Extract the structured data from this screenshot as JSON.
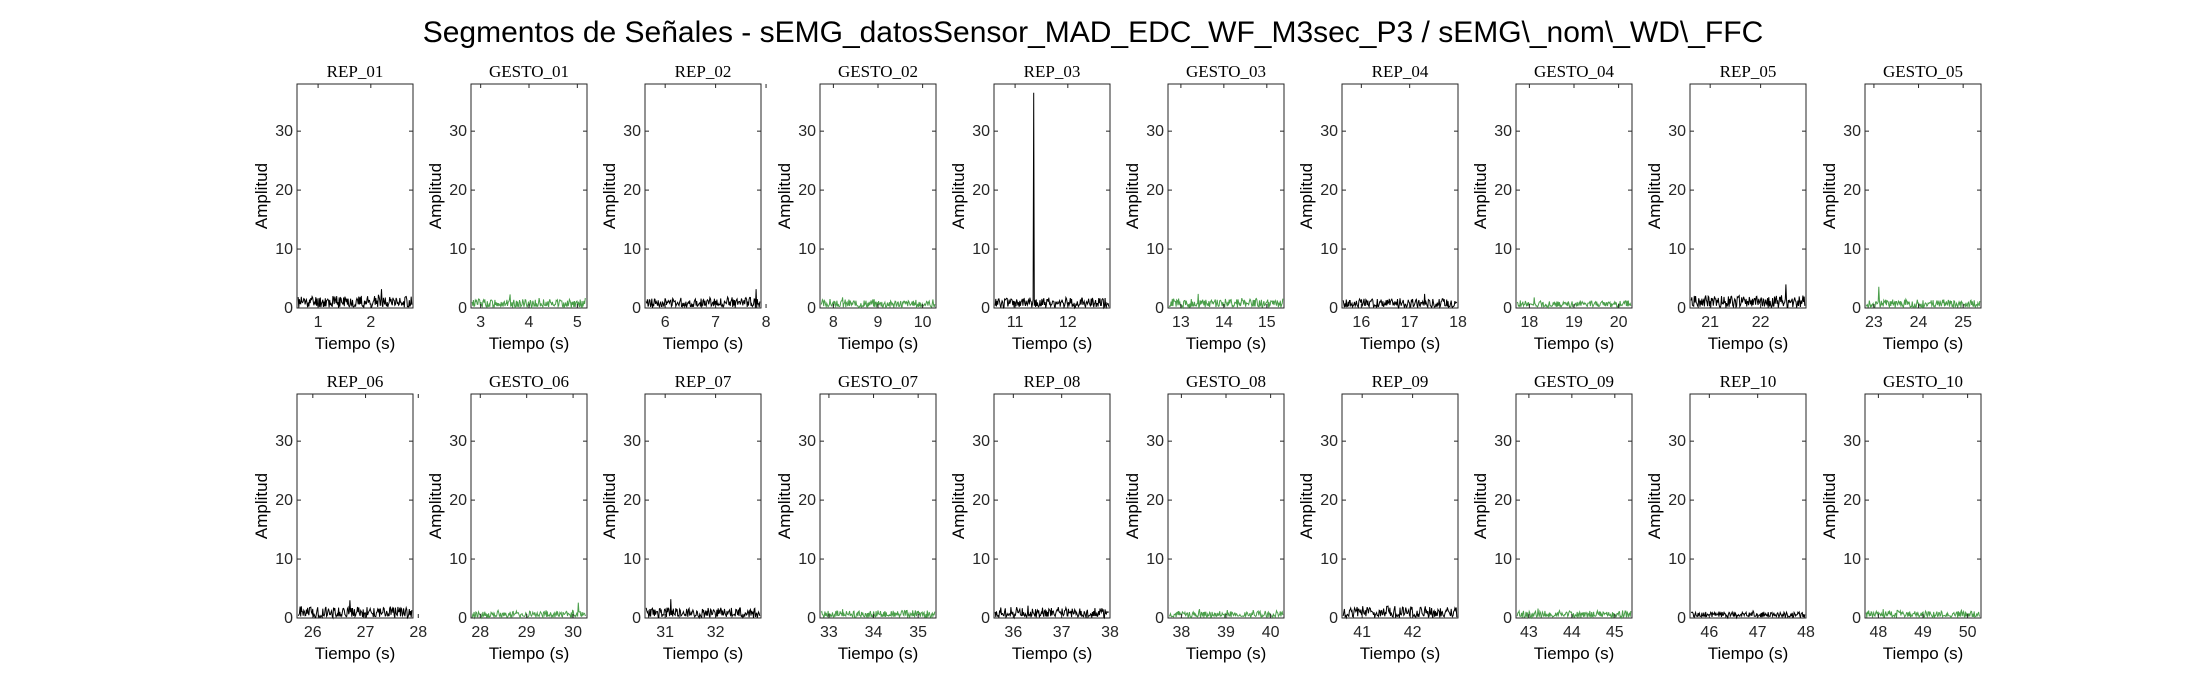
{
  "figure": {
    "title": "Segmentos de Señales - sEMG_datosSensor_MAD_EDC_WF_M3sec_P3 / sEMG\\_nom\\_WD\\_FFC"
  },
  "colors": {
    "rep": "#000000",
    "gesto": "#4a9e4a",
    "axes": "#262626"
  },
  "chart_data": [
    {
      "type": "line",
      "title": "REP_01",
      "xlabel": "Tiempo (s)",
      "ylabel": "Amplitud",
      "xlim": [
        0.6,
        2.8
      ],
      "ylim": [
        0,
        38
      ],
      "xticks": [
        1,
        2
      ],
      "yticks": [
        0,
        10,
        20,
        30
      ],
      "series": [
        {
          "color": "#000000",
          "level": 1.2,
          "peak_x": 2.2,
          "peak_y": 3.2,
          "seed": 11
        }
      ]
    },
    {
      "type": "line",
      "title": "GESTO_01",
      "xlabel": "Tiempo (s)",
      "ylabel": "Amplitud",
      "xlim": [
        2.8,
        5.2
      ],
      "ylim": [
        0,
        38
      ],
      "xticks": [
        3,
        4,
        5
      ],
      "yticks": [
        0,
        10,
        20,
        30
      ],
      "series": [
        {
          "color": "#4a9e4a",
          "level": 0.9,
          "peak_x": 3.6,
          "peak_y": 2.3,
          "seed": 12
        }
      ]
    },
    {
      "type": "line",
      "title": "REP_02",
      "xlabel": "Tiempo (s)",
      "ylabel": "Amplitud",
      "xlim": [
        5.6,
        7.9
      ],
      "ylim": [
        0,
        38
      ],
      "xticks": [
        6,
        7,
        8
      ],
      "yticks": [
        0,
        10,
        20,
        30
      ],
      "series": [
        {
          "color": "#000000",
          "level": 1.0,
          "peak_x": 7.8,
          "peak_y": 3.2,
          "seed": 13
        }
      ]
    },
    {
      "type": "line",
      "title": "GESTO_02",
      "xlabel": "Tiempo (s)",
      "ylabel": "Amplitud",
      "xlim": [
        7.7,
        10.3
      ],
      "ylim": [
        0,
        38
      ],
      "xticks": [
        8,
        9,
        10
      ],
      "yticks": [
        0,
        10,
        20,
        30
      ],
      "series": [
        {
          "color": "#4a9e4a",
          "level": 0.8,
          "peak_x": 8.2,
          "peak_y": 1.8,
          "seed": 14
        }
      ]
    },
    {
      "type": "line",
      "title": "REP_03",
      "xlabel": "Tiempo (s)",
      "ylabel": "Amplitud",
      "xlim": [
        10.6,
        12.8
      ],
      "ylim": [
        0,
        38
      ],
      "xticks": [
        11,
        12
      ],
      "yticks": [
        0,
        10,
        20,
        30
      ],
      "series": [
        {
          "color": "#000000",
          "level": 1.0,
          "peak_x": 11.35,
          "peak_y": 36.5,
          "seed": 15
        }
      ]
    },
    {
      "type": "line",
      "title": "GESTO_03",
      "xlabel": "Tiempo (s)",
      "ylabel": "Amplitud",
      "xlim": [
        12.7,
        15.4
      ],
      "ylim": [
        0,
        38
      ],
      "xticks": [
        13,
        14,
        15
      ],
      "yticks": [
        0,
        10,
        20,
        30
      ],
      "series": [
        {
          "color": "#4a9e4a",
          "level": 0.9,
          "peak_x": 13.4,
          "peak_y": 2.4,
          "seed": 16
        }
      ]
    },
    {
      "type": "line",
      "title": "REP_04",
      "xlabel": "Tiempo (s)",
      "ylabel": "Amplitud",
      "xlim": [
        15.6,
        18.0
      ],
      "ylim": [
        0,
        38
      ],
      "xticks": [
        16,
        17,
        18
      ],
      "yticks": [
        0,
        10,
        20,
        30
      ],
      "series": [
        {
          "color": "#000000",
          "level": 0.9,
          "peak_x": 17.3,
          "peak_y": 2.4,
          "seed": 17
        }
      ]
    },
    {
      "type": "line",
      "title": "GESTO_04",
      "xlabel": "Tiempo (s)",
      "ylabel": "Amplitud",
      "xlim": [
        17.7,
        20.3
      ],
      "ylim": [
        0,
        38
      ],
      "xticks": [
        18,
        19,
        20
      ],
      "yticks": [
        0,
        10,
        20,
        30
      ],
      "series": [
        {
          "color": "#4a9e4a",
          "level": 0.7,
          "peak_x": 18.1,
          "peak_y": 1.8,
          "seed": 18
        }
      ]
    },
    {
      "type": "line",
      "title": "REP_05",
      "xlabel": "Tiempo (s)",
      "ylabel": "Amplitud",
      "xlim": [
        20.6,
        22.9
      ],
      "ylim": [
        0,
        38
      ],
      "xticks": [
        21,
        22
      ],
      "yticks": [
        0,
        10,
        20,
        30
      ],
      "series": [
        {
          "color": "#000000",
          "level": 1.2,
          "peak_x": 22.5,
          "peak_y": 4.0,
          "seed": 19
        }
      ]
    },
    {
      "type": "line",
      "title": "GESTO_05",
      "xlabel": "Tiempo (s)",
      "ylabel": "Amplitud",
      "xlim": [
        22.8,
        25.4
      ],
      "ylim": [
        0,
        38
      ],
      "xticks": [
        23,
        24,
        25
      ],
      "yticks": [
        0,
        10,
        20,
        30
      ],
      "series": [
        {
          "color": "#4a9e4a",
          "level": 0.8,
          "peak_x": 23.1,
          "peak_y": 3.6,
          "seed": 20
        }
      ]
    },
    {
      "type": "line",
      "title": "REP_06",
      "xlabel": "Tiempo (s)",
      "ylabel": "Amplitud",
      "xlim": [
        25.7,
        27.9
      ],
      "ylim": [
        0,
        38
      ],
      "xticks": [
        26,
        27,
        28
      ],
      "yticks": [
        0,
        10,
        20,
        30
      ],
      "series": [
        {
          "color": "#000000",
          "level": 1.1,
          "peak_x": 26.7,
          "peak_y": 3.0,
          "seed": 21
        }
      ]
    },
    {
      "type": "line",
      "title": "GESTO_06",
      "xlabel": "Tiempo (s)",
      "ylabel": "Amplitud",
      "xlim": [
        27.8,
        30.3
      ],
      "ylim": [
        0,
        38
      ],
      "xticks": [
        28,
        29,
        30
      ],
      "yticks": [
        0,
        10,
        20,
        30
      ],
      "series": [
        {
          "color": "#4a9e4a",
          "level": 0.7,
          "peak_x": 30.1,
          "peak_y": 2.6,
          "seed": 22
        }
      ]
    },
    {
      "type": "line",
      "title": "REP_07",
      "xlabel": "Tiempo (s)",
      "ylabel": "Amplitud",
      "xlim": [
        30.6,
        32.9
      ],
      "ylim": [
        0,
        38
      ],
      "xticks": [
        31,
        32
      ],
      "yticks": [
        0,
        10,
        20,
        30
      ],
      "series": [
        {
          "color": "#000000",
          "level": 1.0,
          "peak_x": 31.1,
          "peak_y": 3.2,
          "seed": 23
        }
      ]
    },
    {
      "type": "line",
      "title": "GESTO_07",
      "xlabel": "Tiempo (s)",
      "ylabel": "Amplitud",
      "xlim": [
        32.8,
        35.4
      ],
      "ylim": [
        0,
        38
      ],
      "xticks": [
        33,
        34,
        35
      ],
      "yticks": [
        0,
        10,
        20,
        30
      ],
      "series": [
        {
          "color": "#4a9e4a",
          "level": 0.7,
          "peak_x": 33.3,
          "peak_y": 1.5,
          "seed": 24
        }
      ]
    },
    {
      "type": "line",
      "title": "REP_08",
      "xlabel": "Tiempo (s)",
      "ylabel": "Amplitud",
      "xlim": [
        35.6,
        38.0
      ],
      "ylim": [
        0,
        38
      ],
      "xticks": [
        36,
        37,
        38
      ],
      "yticks": [
        0,
        10,
        20,
        30
      ],
      "series": [
        {
          "color": "#000000",
          "level": 1.0,
          "peak_x": 36.3,
          "peak_y": 2.1,
          "seed": 25
        }
      ]
    },
    {
      "type": "line",
      "title": "GESTO_08",
      "xlabel": "Tiempo (s)",
      "ylabel": "Amplitud",
      "xlim": [
        37.7,
        40.3
      ],
      "ylim": [
        0,
        38
      ],
      "xticks": [
        38,
        39,
        40
      ],
      "yticks": [
        0,
        10,
        20,
        30
      ],
      "series": [
        {
          "color": "#4a9e4a",
          "level": 0.7,
          "peak_x": 38.4,
          "peak_y": 1.5,
          "seed": 26
        }
      ]
    },
    {
      "type": "line",
      "title": "REP_09",
      "xlabel": "Tiempo (s)",
      "ylabel": "Amplitud",
      "xlim": [
        40.6,
        42.9
      ],
      "ylim": [
        0,
        38
      ],
      "xticks": [
        41,
        42
      ],
      "yticks": [
        0,
        10,
        20,
        30
      ],
      "series": [
        {
          "color": "#000000",
          "level": 1.1,
          "peak_x": 41.0,
          "peak_y": 2.0,
          "seed": 27
        }
      ]
    },
    {
      "type": "line",
      "title": "GESTO_09",
      "xlabel": "Tiempo (s)",
      "ylabel": "Amplitud",
      "xlim": [
        42.7,
        45.4
      ],
      "ylim": [
        0,
        38
      ],
      "xticks": [
        43,
        44,
        45
      ],
      "yticks": [
        0,
        10,
        20,
        30
      ],
      "series": [
        {
          "color": "#4a9e4a",
          "level": 0.7,
          "peak_x": 43.2,
          "peak_y": 1.6,
          "seed": 28
        }
      ]
    },
    {
      "type": "line",
      "title": "REP_10",
      "xlabel": "Tiempo (s)",
      "ylabel": "Amplitud",
      "xlim": [
        45.6,
        48.0
      ],
      "ylim": [
        0,
        38
      ],
      "xticks": [
        46,
        47,
        48
      ],
      "yticks": [
        0,
        10,
        20,
        30
      ],
      "series": [
        {
          "color": "#000000",
          "level": 0.6,
          "peak_x": 46.9,
          "peak_y": 1.2,
          "seed": 29
        }
      ]
    },
    {
      "type": "line",
      "title": "GESTO_10",
      "xlabel": "Tiempo (s)",
      "ylabel": "Amplitud",
      "xlim": [
        47.7,
        50.3
      ],
      "ylim": [
        0,
        38
      ],
      "xticks": [
        48,
        49,
        50
      ],
      "yticks": [
        0,
        10,
        20,
        30
      ],
      "series": [
        {
          "color": "#4a9e4a",
          "level": 0.7,
          "peak_x": 48.1,
          "peak_y": 1.5,
          "seed": 30
        }
      ]
    }
  ]
}
